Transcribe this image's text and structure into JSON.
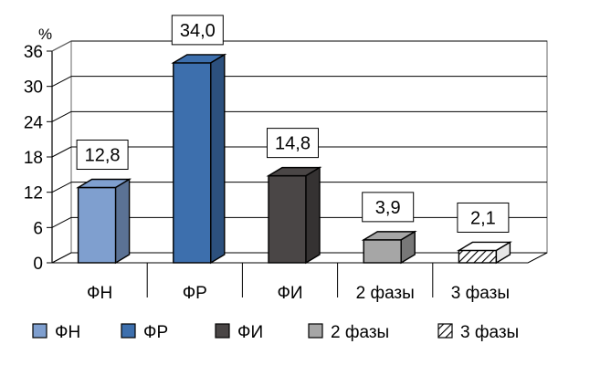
{
  "chart_data": {
    "type": "bar",
    "title": "",
    "xlabel": "",
    "ylabel": "%",
    "ylim": [
      0,
      36
    ],
    "yticks": [
      "0",
      "6",
      "12",
      "18",
      "24",
      "30",
      "36"
    ],
    "grid": true,
    "legend_position": "bottom",
    "categories": [
      "ФН",
      "ФР",
      "ФИ",
      "2 фазы",
      "3 фазы"
    ],
    "values": [
      12.8,
      34.0,
      14.8,
      3.9,
      2.1
    ],
    "data_labels": [
      "12,8",
      "34,0",
      "14,8",
      "3,9",
      "2,1"
    ],
    "colors": [
      "#7f9fcf",
      "#3d6fad",
      "#4a4646",
      "#a6a6a6",
      "#ffffff"
    ],
    "patterns": [
      "solid",
      "solid",
      "solid",
      "solid",
      "hatched"
    ],
    "legend": [
      "ФН",
      "ФР",
      "ФИ",
      "2 фазы",
      "3 фазы"
    ]
  }
}
